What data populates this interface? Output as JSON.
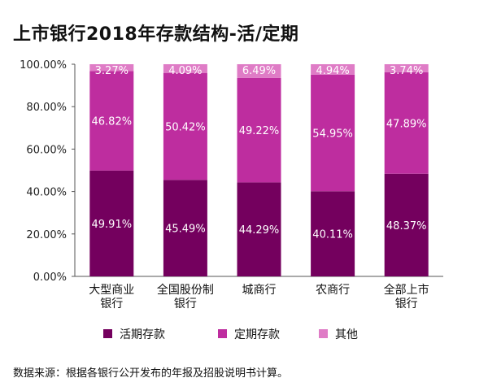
{
  "title": "上市银行2018年存款结构-活/定期",
  "source": "数据来源：根据各银行公开发布的年报及招股说明书计算。",
  "colors": {
    "demand": "#74005e",
    "time": "#be2d9f",
    "other": "#df7cc6"
  },
  "chart_data": {
    "type": "bar",
    "stacked": true,
    "title": "上市银行2018年存款结构-活/定期",
    "xlabel": "",
    "ylabel": "",
    "ylim": [
      0,
      100
    ],
    "y_ticks": [
      "0.00%",
      "20.00%",
      "40.00%",
      "60.00%",
      "80.00%",
      "100.00%"
    ],
    "categories": [
      [
        "大型商业",
        "银行"
      ],
      [
        "全国股份制",
        "银行"
      ],
      [
        "城商行"
      ],
      [
        "农商行"
      ],
      [
        "全部上市",
        "银行"
      ]
    ],
    "series": [
      {
        "name": "活期存款",
        "values": [
          49.91,
          45.49,
          44.29,
          40.11,
          48.37
        ],
        "labels": [
          "49.91%",
          "45.49%",
          "44.29%",
          "40.11%",
          "48.37%"
        ]
      },
      {
        "name": "定期存款",
        "values": [
          46.82,
          50.42,
          49.22,
          54.95,
          47.89
        ],
        "labels": [
          "46.82%",
          "50.42%",
          "49.22%",
          "54.95%",
          "47.89%"
        ]
      },
      {
        "name": "其他",
        "values": [
          3.27,
          4.09,
          6.49,
          4.94,
          3.74
        ],
        "labels": [
          "3.27%",
          "4.09%",
          "6.49%",
          "4.94%",
          "3.74%"
        ]
      }
    ],
    "legend_position": "bottom",
    "grid": false
  }
}
